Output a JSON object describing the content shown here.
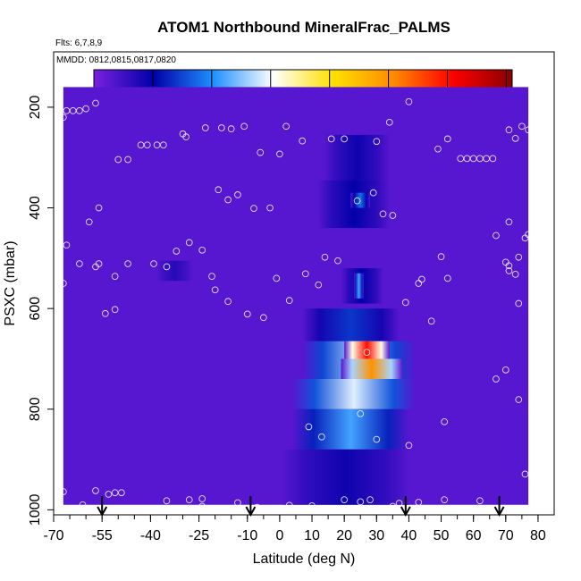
{
  "chart_data": {
    "type": "heatmap",
    "title": "ATOM1 Northbound MineralFrac_PALMS",
    "flights_label": "Flts: 6,7,8,9",
    "dates_label": "MMDD: 0812,0815,0817,0820",
    "xlabel": "Latitude (deg N)",
    "ylabel": "PSXC (mbar)",
    "xlim": [
      -70,
      85
    ],
    "ylim": [
      1010,
      90
    ],
    "y_reversed": true,
    "grid": false,
    "x_ticks": [
      "-70",
      "-55",
      "-40",
      "-25",
      "-10",
      "0",
      "10",
      "20",
      "30",
      "40",
      "50",
      "60",
      "70",
      "80"
    ],
    "x_tick_values": [
      -70,
      -55,
      -40,
      -25,
      -10,
      0,
      10,
      20,
      30,
      40,
      50,
      60,
      70,
      80
    ],
    "y_ticks": [
      "200",
      "400",
      "600",
      "800",
      "1000"
    ],
    "y_tick_values": [
      200,
      400,
      600,
      800,
      1000
    ],
    "colorbar": {
      "range": [
        0,
        0.71
      ],
      "ticks": [
        "0.0",
        "0.1",
        "0.2",
        "0.3",
        "0.4",
        "0.5",
        "0.6",
        "0.7"
      ],
      "tick_values": [
        0,
        0.1,
        0.2,
        0.3,
        0.4,
        0.5,
        0.6,
        0.7
      ],
      "colors": [
        "#7b1fe0",
        "#0000a8",
        "#1e90ff",
        "#ffffff",
        "#ffe000",
        "#ff8c00",
        "#ff0000",
        "#8b0000"
      ]
    },
    "field": {
      "background_value": 0.03,
      "data_lat_range": [
        -67,
        77
      ],
      "data_p_range": [
        160,
        990
      ],
      "features": [
        {
          "lat": [
            14,
            34
          ],
          "p": [
            255,
            345
          ],
          "value": 0.09
        },
        {
          "lat": [
            12,
            34
          ],
          "p": [
            345,
            440
          ],
          "value": 0.1
        },
        {
          "lat": [
            22,
            28
          ],
          "p": [
            370,
            400
          ],
          "value": 0.18
        },
        {
          "lat": [
            19,
            32
          ],
          "p": [
            520,
            590
          ],
          "value": 0.1
        },
        {
          "lat": [
            23,
            26
          ],
          "p": [
            530,
            580
          ],
          "value": 0.22
        },
        {
          "lat": [
            7,
            37
          ],
          "p": [
            600,
            665
          ],
          "value": 0.14
        },
        {
          "lat": [
            7,
            42
          ],
          "p": [
            665,
            740
          ],
          "value": 0.27
        },
        {
          "lat": [
            20,
            34
          ],
          "p": [
            665,
            705
          ],
          "value": 0.6
        },
        {
          "lat": [
            19,
            38
          ],
          "p": [
            700,
            740
          ],
          "value": 0.5
        },
        {
          "lat": [
            4,
            42
          ],
          "p": [
            740,
            800
          ],
          "value": 0.29
        },
        {
          "lat": [
            4,
            40
          ],
          "p": [
            800,
            880
          ],
          "value": 0.22
        },
        {
          "lat": [
            1,
            40
          ],
          "p": [
            880,
            990
          ],
          "value": 0.09
        },
        {
          "lat": [
            -38,
            -27
          ],
          "p": [
            505,
            545
          ],
          "value": 0.07
        }
      ]
    },
    "markers_lat": [
      -55,
      -9,
      39,
      68
    ],
    "points": [
      [
        -67,
        220
      ],
      [
        -66,
        207
      ],
      [
        -64,
        207
      ],
      [
        -62,
        207
      ],
      [
        -60,
        203
      ],
      [
        -57,
        192
      ],
      [
        -50,
        304
      ],
      [
        -47,
        304
      ],
      [
        -43,
        275
      ],
      [
        -41,
        275
      ],
      [
        -38,
        275
      ],
      [
        -36,
        275
      ],
      [
        -30,
        253
      ],
      [
        -29,
        259
      ],
      [
        -23,
        241
      ],
      [
        -18,
        241
      ],
      [
        -15,
        243
      ],
      [
        -11,
        238
      ],
      [
        -6,
        290
      ],
      [
        0,
        293
      ],
      [
        2,
        238
      ],
      [
        7,
        267
      ],
      [
        16,
        263
      ],
      [
        20,
        263
      ],
      [
        30,
        268
      ],
      [
        34,
        230
      ],
      [
        40,
        189
      ],
      [
        49,
        283
      ],
      [
        52,
        263
      ],
      [
        56,
        302
      ],
      [
        58,
        302
      ],
      [
        60,
        302
      ],
      [
        62,
        302
      ],
      [
        64,
        302
      ],
      [
        66,
        302
      ],
      [
        71,
        245
      ],
      [
        73,
        262
      ],
      [
        75,
        238
      ],
      [
        77,
        245
      ],
      [
        -19,
        364
      ],
      [
        -16,
        384
      ],
      [
        -13,
        374
      ],
      [
        -8,
        401
      ],
      [
        -3,
        400
      ],
      [
        -56,
        400
      ],
      [
        -59,
        428
      ],
      [
        -66,
        474
      ],
      [
        -62,
        511
      ],
      [
        -57,
        517
      ],
      [
        -56,
        511
      ],
      [
        -51,
        536
      ],
      [
        -47,
        511
      ],
      [
        -39,
        511
      ],
      [
        -35,
        517
      ],
      [
        -32,
        486
      ],
      [
        -28,
        469
      ],
      [
        -24,
        484
      ],
      [
        -20,
        563
      ],
      [
        -21,
        536
      ],
      [
        -16,
        586
      ],
      [
        -10,
        611
      ],
      [
        -5,
        618
      ],
      [
        -1,
        540
      ],
      [
        3,
        584
      ],
      [
        8,
        531
      ],
      [
        12,
        553
      ],
      [
        14,
        498
      ],
      [
        18,
        505
      ],
      [
        24,
        386
      ],
      [
        29,
        370
      ],
      [
        32,
        412
      ],
      [
        35,
        415
      ],
      [
        39,
        588
      ],
      [
        43,
        550
      ],
      [
        47,
        625
      ],
      [
        50,
        497
      ],
      [
        51,
        825
      ],
      [
        27,
        687
      ],
      [
        25,
        809
      ],
      [
        9,
        835
      ],
      [
        13,
        855
      ],
      [
        30,
        860
      ],
      [
        40,
        872
      ],
      [
        44,
        542
      ],
      [
        52,
        540
      ],
      [
        67,
        455
      ],
      [
        70,
        508
      ],
      [
        71,
        515
      ],
      [
        71,
        525
      ],
      [
        73,
        532
      ],
      [
        74,
        498
      ],
      [
        74,
        590
      ],
      [
        76,
        460
      ],
      [
        77,
        453
      ],
      [
        71,
        428
      ],
      [
        67,
        740
      ],
      [
        70,
        722
      ],
      [
        74,
        781
      ],
      [
        76,
        929
      ],
      [
        79,
        906
      ],
      [
        -67,
        550
      ],
      [
        -54,
        610
      ],
      [
        -51,
        602
      ],
      [
        -67,
        964
      ],
      [
        -61,
        990
      ],
      [
        -57,
        962
      ],
      [
        -53,
        969
      ],
      [
        -51,
        966
      ],
      [
        -49,
        966
      ],
      [
        -35,
        982
      ],
      [
        -28,
        980
      ],
      [
        -24,
        978
      ],
      [
        -24,
        993
      ],
      [
        -13,
        986
      ],
      [
        -7,
        995
      ],
      [
        3,
        991
      ],
      [
        10,
        992
      ],
      [
        20,
        980
      ],
      [
        25,
        984
      ],
      [
        28,
        980
      ],
      [
        35,
        993
      ],
      [
        37,
        987
      ],
      [
        43,
        985
      ],
      [
        51,
        980
      ],
      [
        62,
        982
      ]
    ]
  }
}
